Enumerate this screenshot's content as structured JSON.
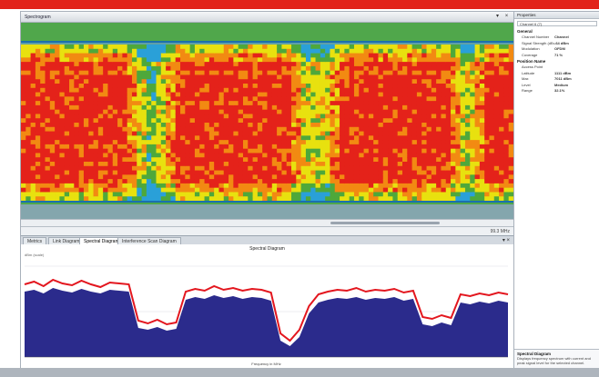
{
  "window": {
    "title": "Spectrogram"
  },
  "window_controls": {
    "pin": "▾",
    "close": "×"
  },
  "status_bar": {
    "right_text": "99.3 MHz"
  },
  "tabs": [
    {
      "label": "Metrics"
    },
    {
      "label": "Link Diagram"
    },
    {
      "label": "Spectral Diagram",
      "active": true
    },
    {
      "label": "Interference Scan Diagram"
    }
  ],
  "tab_controls": "▾ ×",
  "spectral_view": {
    "title": "Spectral Diagram",
    "subtitle": "dBm (scale)",
    "xlabel": "Frequency in MHz"
  },
  "properties": {
    "title": "Properties",
    "selector": "Channel 6 (7)",
    "sections": [
      {
        "header": "General",
        "rows": [
          {
            "key": "Channel Number",
            "value": "Channel"
          },
          {
            "key": "Signal Strength (dBm)",
            "value": "-64 dBm"
          },
          {
            "key": "Modulation",
            "value": "OFDM"
          },
          {
            "key": "Coverage",
            "value": "71 %"
          }
        ]
      },
      {
        "header": "Position Name",
        "rows": [
          {
            "key": "Access Point",
            "value": ""
          },
          {
            "key": "Latitude",
            "value": "1111 dBm"
          },
          {
            "key": "Max",
            "value": "7011 dBm"
          },
          {
            "key": "Level",
            "value": "Medium"
          },
          {
            "key": "Range",
            "value": "32.1%"
          }
        ]
      }
    ],
    "description": {
      "title": "Spectral Diagram",
      "text": "Displays frequency spectrum with current and peak signal level for the selected channel."
    }
  },
  "colors": {
    "heat_low": "#2aa0d8",
    "heat_midlow": "#4ea83b",
    "heat_mid": "#e8e10f",
    "heat_high": "#f28a12",
    "heat_max": "#e4221a",
    "spectral_fill": "#2b2b8c",
    "spectral_peak": "#e3161e",
    "accent_red": "#e2231a"
  },
  "chart_data": {
    "type": "area",
    "title": "Spectral Diagram",
    "xlabel": "Frequency in MHz",
    "ylabel": "dBm (scale)",
    "ylim": [
      0,
      100
    ],
    "series": [
      {
        "name": "Average",
        "values": [
          72,
          74,
          70,
          76,
          73,
          71,
          75,
          72,
          70,
          74,
          73,
          72,
          32,
          30,
          33,
          29,
          31,
          63,
          66,
          64,
          68,
          65,
          67,
          64,
          66,
          65,
          62,
          18,
          12,
          22,
          48,
          60,
          63,
          65,
          64,
          66,
          63,
          65,
          64,
          66,
          62,
          64,
          36,
          34,
          38,
          35,
          60,
          58,
          61,
          59,
          62,
          60
        ]
      },
      {
        "name": "Peak",
        "values": [
          80,
          83,
          78,
          85,
          81,
          79,
          84,
          80,
          77,
          82,
          81,
          80,
          40,
          37,
          41,
          36,
          38,
          72,
          75,
          73,
          78,
          74,
          76,
          73,
          75,
          74,
          71,
          26,
          18,
          30,
          56,
          69,
          72,
          74,
          73,
          76,
          72,
          74,
          73,
          75,
          71,
          73,
          44,
          42,
          46,
          43,
          69,
          67,
          70,
          68,
          71,
          69
        ]
      }
    ],
    "heatmap_profile": [
      3,
      3,
      3,
      3,
      3,
      3,
      3,
      3,
      3,
      3,
      3,
      3,
      3,
      3,
      3,
      3,
      3,
      3,
      3,
      3,
      3,
      3,
      2,
      2,
      1,
      1,
      0,
      0,
      1,
      1,
      2,
      2,
      3,
      3,
      3,
      3,
      3,
      3,
      3,
      3,
      3,
      3,
      3,
      3,
      3,
      3,
      3,
      3,
      3,
      3,
      3,
      3,
      3,
      3,
      3,
      3,
      2,
      2,
      1,
      1,
      1,
      1,
      1,
      1,
      2,
      2,
      3,
      3,
      3,
      3,
      3,
      3,
      3,
      3,
      3,
      3,
      3,
      3,
      3,
      3,
      3,
      3,
      3,
      3,
      3,
      3,
      3,
      3,
      3,
      2,
      2,
      1,
      1,
      1,
      2,
      2,
      3,
      3,
      3,
      3,
      3,
      3
    ]
  }
}
